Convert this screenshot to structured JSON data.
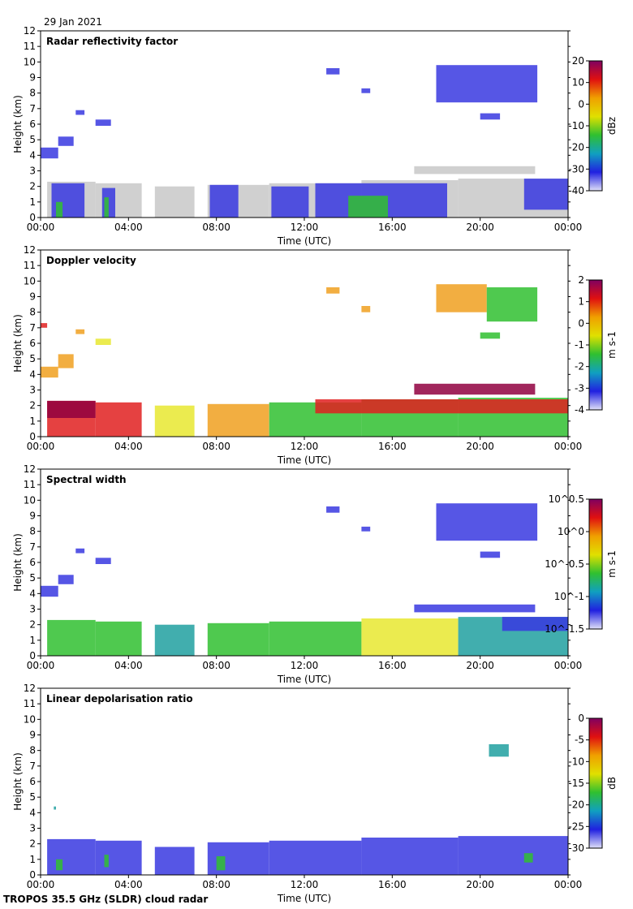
{
  "date": "29 Jan 2021",
  "footer": "TROPOS 35.5 GHz (SLDR) cloud radar",
  "chart_data": [
    {
      "type": "heatmap",
      "title": "Radar reflectivity factor",
      "xlabel": "Time (UTC)",
      "ylabel": "Height (km)",
      "x_ticks": [
        "00:00",
        "04:00",
        "08:00",
        "12:00",
        "16:00",
        "20:00",
        "00:00"
      ],
      "y_ticks": [
        "0",
        "1",
        "2",
        "3",
        "4",
        "5",
        "6",
        "7",
        "8",
        "9",
        "10",
        "11",
        "12"
      ],
      "ylim": [
        0,
        12
      ],
      "xlim_hours": [
        0,
        24
      ],
      "colorbar": {
        "label": "dBz",
        "ticks": [
          "20",
          "10",
          "0",
          "-10",
          "-20",
          "-30",
          "-40"
        ]
      },
      "cloud_cells": [
        {
          "t0": 0.3,
          "t1": 2.5,
          "h0": 0,
          "h1": 2.3,
          "c": "gray"
        },
        {
          "t0": 2.5,
          "t1": 4.6,
          "h0": 0,
          "h1": 2.2,
          "c": "gray"
        },
        {
          "t0": 5.2,
          "t1": 7.0,
          "h0": 0,
          "h1": 2.0,
          "c": "gray"
        },
        {
          "t0": 7.6,
          "t1": 10.4,
          "h0": 0,
          "h1": 2.1,
          "c": "gray"
        },
        {
          "t0": 10.4,
          "t1": 14.6,
          "h0": 0,
          "h1": 2.2,
          "c": "gray"
        },
        {
          "t0": 14.6,
          "t1": 19.0,
          "h0": 0,
          "h1": 2.4,
          "c": "gray"
        },
        {
          "t0": 19.0,
          "t1": 24.0,
          "h0": 0,
          "h1": 2.5,
          "c": "gray"
        },
        {
          "t0": 17.0,
          "t1": 22.5,
          "h0": 2.8,
          "h1": 3.3,
          "c": "gray"
        },
        {
          "t0": 0.5,
          "t1": 2.0,
          "h0": 0,
          "h1": 2.2,
          "c": "blue"
        },
        {
          "t0": 2.8,
          "t1": 3.4,
          "h0": 0,
          "h1": 1.9,
          "c": "blue"
        },
        {
          "t0": 7.7,
          "t1": 9.0,
          "h0": 0,
          "h1": 2.1,
          "c": "blue"
        },
        {
          "t0": 10.5,
          "t1": 12.2,
          "h0": 0,
          "h1": 2.0,
          "c": "blue"
        },
        {
          "t0": 12.5,
          "t1": 18.5,
          "h0": 0,
          "h1": 2.2,
          "c": "blue"
        },
        {
          "t0": 22.0,
          "t1": 24.0,
          "h0": 0.5,
          "h1": 2.5,
          "c": "blue"
        },
        {
          "t0": 0.7,
          "t1": 1.0,
          "h0": 0,
          "h1": 1.0,
          "c": "green"
        },
        {
          "t0": 2.9,
          "t1": 3.1,
          "h0": 0,
          "h1": 1.3,
          "c": "green"
        },
        {
          "t0": 14.0,
          "t1": 15.8,
          "h0": 0,
          "h1": 1.4,
          "c": "green"
        },
        {
          "t0": 0,
          "t1": 0.8,
          "h0": 3.8,
          "h1": 4.5,
          "c": "blue"
        },
        {
          "t0": 0.8,
          "t1": 1.5,
          "h0": 4.6,
          "h1": 5.2,
          "c": "blue"
        },
        {
          "t0": 1.6,
          "t1": 2.0,
          "h0": 6.6,
          "h1": 6.9,
          "c": "blue"
        },
        {
          "t0": 2.5,
          "t1": 3.2,
          "h0": 5.9,
          "h1": 6.3,
          "c": "blue"
        },
        {
          "t0": 13.0,
          "t1": 13.6,
          "h0": 9.2,
          "h1": 9.6,
          "c": "blue"
        },
        {
          "t0": 14.6,
          "t1": 15.0,
          "h0": 8.0,
          "h1": 8.3,
          "c": "blue"
        },
        {
          "t0": 18.0,
          "t1": 22.6,
          "h0": 7.4,
          "h1": 9.8,
          "c": "blue"
        },
        {
          "t0": 20.0,
          "t1": 20.9,
          "h0": 6.3,
          "h1": 6.7,
          "c": "blue"
        }
      ]
    },
    {
      "type": "heatmap",
      "title": "Doppler velocity",
      "xlabel": "Time (UTC)",
      "ylabel": "Height (km)",
      "x_ticks": [
        "00:00",
        "04:00",
        "08:00",
        "12:00",
        "16:00",
        "20:00",
        "00:00"
      ],
      "y_ticks": [
        "0",
        "1",
        "2",
        "3",
        "4",
        "5",
        "6",
        "7",
        "8",
        "9",
        "10",
        "11",
        "12"
      ],
      "ylim": [
        0,
        12
      ],
      "xlim_hours": [
        0,
        24
      ],
      "colorbar": {
        "label": "m s-1",
        "ticks": [
          "2",
          "1",
          "0",
          "-1",
          "-2",
          "-3",
          "-4"
        ]
      },
      "cloud_cells": [
        {
          "t0": 0.3,
          "t1": 2.5,
          "h0": 0,
          "h1": 2.3,
          "c": "red"
        },
        {
          "t0": 2.5,
          "t1": 4.6,
          "h0": 0,
          "h1": 2.2,
          "c": "red"
        },
        {
          "t0": 5.2,
          "t1": 7.0,
          "h0": 0,
          "h1": 2.0,
          "c": "yellow"
        },
        {
          "t0": 7.6,
          "t1": 10.4,
          "h0": 0,
          "h1": 2.1,
          "c": "orange"
        },
        {
          "t0": 10.4,
          "t1": 14.6,
          "h0": 0,
          "h1": 2.2,
          "c": "green"
        },
        {
          "t0": 14.6,
          "t1": 19.0,
          "h0": 0,
          "h1": 2.4,
          "c": "green"
        },
        {
          "t0": 19.0,
          "t1": 24.0,
          "h0": 0,
          "h1": 2.5,
          "c": "green"
        },
        {
          "t0": 0.3,
          "t1": 2.5,
          "h0": 1.2,
          "h1": 2.3,
          "c": "darkred"
        },
        {
          "t0": 12.5,
          "t1": 24.0,
          "h0": 1.5,
          "h1": 2.4,
          "c": "red"
        },
        {
          "t0": 17.0,
          "t1": 22.5,
          "h0": 2.7,
          "h1": 3.4,
          "c": "darkred"
        },
        {
          "t0": 0,
          "t1": 0.8,
          "h0": 3.8,
          "h1": 4.5,
          "c": "orange"
        },
        {
          "t0": 0.8,
          "t1": 1.5,
          "h0": 4.4,
          "h1": 5.3,
          "c": "orange"
        },
        {
          "t0": 1.6,
          "t1": 2.0,
          "h0": 6.6,
          "h1": 6.9,
          "c": "orange"
        },
        {
          "t0": 2.5,
          "t1": 3.2,
          "h0": 5.9,
          "h1": 6.3,
          "c": "yellow"
        },
        {
          "t0": 0,
          "t1": 0.3,
          "h0": 7.0,
          "h1": 7.3,
          "c": "red"
        },
        {
          "t0": 13.0,
          "t1": 13.6,
          "h0": 9.2,
          "h1": 9.6,
          "c": "orange"
        },
        {
          "t0": 14.6,
          "t1": 15.0,
          "h0": 8.0,
          "h1": 8.4,
          "c": "orange"
        },
        {
          "t0": 18.0,
          "t1": 20.3,
          "h0": 8.0,
          "h1": 9.8,
          "c": "orange"
        },
        {
          "t0": 20.3,
          "t1": 22.6,
          "h0": 7.4,
          "h1": 9.6,
          "c": "green"
        },
        {
          "t0": 20.0,
          "t1": 20.9,
          "h0": 6.3,
          "h1": 6.7,
          "c": "green"
        }
      ]
    },
    {
      "type": "heatmap",
      "title": "Spectral width",
      "xlabel": "Time (UTC)",
      "ylabel": "Height (km)",
      "x_ticks": [
        "00:00",
        "04:00",
        "08:00",
        "12:00",
        "16:00",
        "20:00",
        "00:00"
      ],
      "y_ticks": [
        "0",
        "1",
        "2",
        "3",
        "4",
        "5",
        "6",
        "7",
        "8",
        "9",
        "10",
        "11",
        "12"
      ],
      "ylim": [
        0,
        12
      ],
      "xlim_hours": [
        0,
        24
      ],
      "colorbar": {
        "label": "m s-1",
        "ticks": [
          "10^0.5",
          "10^0",
          "10^-0.5",
          "10^-1",
          "10^-1.5"
        ]
      },
      "cloud_cells": [
        {
          "t0": 0.3,
          "t1": 2.5,
          "h0": 0,
          "h1": 2.3,
          "c": "green"
        },
        {
          "t0": 2.5,
          "t1": 4.6,
          "h0": 0,
          "h1": 2.2,
          "c": "green"
        },
        {
          "t0": 5.2,
          "t1": 7.0,
          "h0": 0,
          "h1": 2.0,
          "c": "teal"
        },
        {
          "t0": 7.6,
          "t1": 10.4,
          "h0": 0,
          "h1": 2.1,
          "c": "green"
        },
        {
          "t0": 10.4,
          "t1": 14.6,
          "h0": 0,
          "h1": 2.2,
          "c": "green"
        },
        {
          "t0": 14.6,
          "t1": 19.0,
          "h0": 0,
          "h1": 2.4,
          "c": "yellow"
        },
        {
          "t0": 19.0,
          "t1": 24.0,
          "h0": 0,
          "h1": 2.5,
          "c": "teal"
        },
        {
          "t0": 17.0,
          "t1": 22.5,
          "h0": 2.8,
          "h1": 3.3,
          "c": "blue"
        },
        {
          "t0": 21.0,
          "t1": 24.0,
          "h0": 1.6,
          "h1": 2.5,
          "c": "blue"
        },
        {
          "t0": 0,
          "t1": 0.8,
          "h0": 3.8,
          "h1": 4.5,
          "c": "blue"
        },
        {
          "t0": 0.8,
          "t1": 1.5,
          "h0": 4.6,
          "h1": 5.2,
          "c": "blue"
        },
        {
          "t0": 1.6,
          "t1": 2.0,
          "h0": 6.6,
          "h1": 6.9,
          "c": "blue"
        },
        {
          "t0": 2.5,
          "t1": 3.2,
          "h0": 5.9,
          "h1": 6.3,
          "c": "blue"
        },
        {
          "t0": 13.0,
          "t1": 13.6,
          "h0": 9.2,
          "h1": 9.6,
          "c": "blue"
        },
        {
          "t0": 14.6,
          "t1": 15.0,
          "h0": 8.0,
          "h1": 8.3,
          "c": "blue"
        },
        {
          "t0": 18.0,
          "t1": 22.6,
          "h0": 7.4,
          "h1": 9.8,
          "c": "blue"
        },
        {
          "t0": 20.0,
          "t1": 20.9,
          "h0": 6.3,
          "h1": 6.7,
          "c": "blue"
        }
      ]
    },
    {
      "type": "heatmap",
      "title": "Linear depolarisation ratio",
      "xlabel": "Time (UTC)",
      "ylabel": "Height (km)",
      "x_ticks": [
        "00:00",
        "04:00",
        "08:00",
        "12:00",
        "16:00",
        "20:00",
        "00:00"
      ],
      "y_ticks": [
        "0",
        "1",
        "2",
        "3",
        "4",
        "5",
        "6",
        "7",
        "8",
        "9",
        "10",
        "11",
        "12"
      ],
      "ylim": [
        0,
        12
      ],
      "xlim_hours": [
        0,
        24
      ],
      "colorbar": {
        "label": "dB",
        "ticks": [
          "0",
          "-5",
          "-10",
          "-15",
          "-20",
          "-25",
          "-30"
        ]
      },
      "cloud_cells": [
        {
          "t0": 0.3,
          "t1": 2.5,
          "h0": 0,
          "h1": 2.3,
          "c": "blue"
        },
        {
          "t0": 2.5,
          "t1": 4.6,
          "h0": 0,
          "h1": 2.2,
          "c": "blue"
        },
        {
          "t0": 5.2,
          "t1": 7.0,
          "h0": 0,
          "h1": 1.8,
          "c": "blue"
        },
        {
          "t0": 7.6,
          "t1": 10.4,
          "h0": 0,
          "h1": 2.1,
          "c": "blue"
        },
        {
          "t0": 10.4,
          "t1": 14.6,
          "h0": 0,
          "h1": 2.2,
          "c": "blue"
        },
        {
          "t0": 14.6,
          "t1": 19.0,
          "h0": 0,
          "h1": 2.4,
          "c": "blue"
        },
        {
          "t0": 19.0,
          "t1": 24.0,
          "h0": 0,
          "h1": 2.5,
          "c": "blue"
        },
        {
          "t0": 0.7,
          "t1": 1.0,
          "h0": 0.3,
          "h1": 1.0,
          "c": "green"
        },
        {
          "t0": 2.9,
          "t1": 3.1,
          "h0": 0.5,
          "h1": 1.3,
          "c": "green"
        },
        {
          "t0": 8.0,
          "t1": 8.4,
          "h0": 0.3,
          "h1": 1.2,
          "c": "green"
        },
        {
          "t0": 22.0,
          "t1": 22.4,
          "h0": 0.8,
          "h1": 1.4,
          "c": "green"
        },
        {
          "t0": 20.4,
          "t1": 21.3,
          "h0": 7.6,
          "h1": 8.4,
          "c": "teal"
        },
        {
          "t0": 0.6,
          "t1": 0.7,
          "h0": 4.2,
          "h1": 4.4,
          "c": "teal"
        }
      ]
    }
  ],
  "palette": {
    "gray": "#c8c8c8",
    "blue": "#3838e0",
    "teal": "#20a0a0",
    "green": "#30c030",
    "yellow": "#e8e830",
    "orange": "#f0a020",
    "red": "#e02020",
    "darkred": "#900040"
  },
  "colorbar_colors": [
    "#800060",
    "#e01010",
    "#f0a000",
    "#e0e000",
    "#30c030",
    "#10a0c0",
    "#2020e0",
    "#e0e0f8"
  ]
}
